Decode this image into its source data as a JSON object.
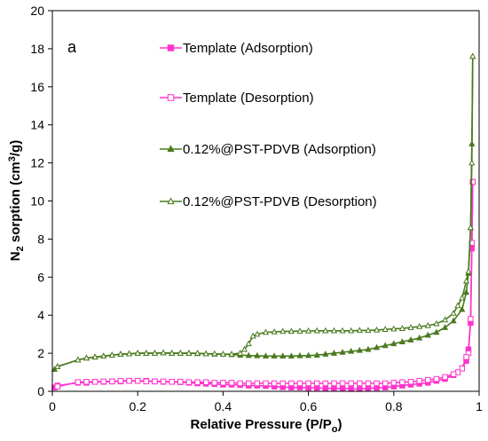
{
  "chart_data": {
    "type": "line",
    "panel_label": "a",
    "xlabel": "Relative Pressure (P/P",
    "xlabel_sub": "o",
    "xlabel_end": ")",
    "ylabel": "N",
    "ylabel_sub": "2",
    "ylabel_mid": " sorption (cm",
    "ylabel_sup": "3",
    "ylabel_end": "/g)",
    "xlim": [
      0,
      1
    ],
    "ylim": [
      0,
      20
    ],
    "xticks": [
      "0",
      "0.2",
      "0.4",
      "0.6",
      "0.8",
      "1"
    ],
    "yticks": [
      "0",
      "2",
      "4",
      "6",
      "8",
      "10",
      "12",
      "14",
      "16",
      "18",
      "20"
    ],
    "grid": false,
    "legend_position": "top-center",
    "colors": {
      "template": "#ff33cc",
      "pst": "#4a7a1e"
    },
    "series": [
      {
        "name": "Template (Adsorption)",
        "marker": "square-filled",
        "color": "#ff33cc",
        "x": [
          0.005,
          0.012,
          0.06,
          0.08,
          0.1,
          0.12,
          0.14,
          0.16,
          0.18,
          0.2,
          0.22,
          0.24,
          0.26,
          0.28,
          0.3,
          0.32,
          0.34,
          0.36,
          0.38,
          0.4,
          0.42,
          0.44,
          0.46,
          0.48,
          0.5,
          0.52,
          0.54,
          0.56,
          0.58,
          0.6,
          0.62,
          0.64,
          0.66,
          0.68,
          0.7,
          0.72,
          0.74,
          0.76,
          0.78,
          0.8,
          0.82,
          0.84,
          0.86,
          0.88,
          0.9,
          0.92,
          0.94,
          0.96,
          0.97,
          0.975,
          0.98,
          0.983,
          0.985
        ],
        "y": [
          0.2,
          0.3,
          0.45,
          0.45,
          0.5,
          0.5,
          0.52,
          0.52,
          0.55,
          0.55,
          0.55,
          0.52,
          0.5,
          0.5,
          0.48,
          0.45,
          0.42,
          0.4,
          0.38,
          0.35,
          0.35,
          0.33,
          0.3,
          0.3,
          0.28,
          0.25,
          0.22,
          0.2,
          0.2,
          0.18,
          0.18,
          0.15,
          0.15,
          0.15,
          0.12,
          0.12,
          0.15,
          0.18,
          0.2,
          0.25,
          0.3,
          0.35,
          0.4,
          0.45,
          0.55,
          0.65,
          0.85,
          1.2,
          1.6,
          2.2,
          3.6,
          7.5,
          11
        ]
      },
      {
        "name": "Template (Desorption)",
        "marker": "square-open",
        "color": "#ff33cc",
        "x": [
          0.985,
          0.983,
          0.98,
          0.975,
          0.97,
          0.96,
          0.95,
          0.94,
          0.92,
          0.9,
          0.88,
          0.86,
          0.84,
          0.82,
          0.8,
          0.78,
          0.76,
          0.74,
          0.72,
          0.7,
          0.68,
          0.66,
          0.64,
          0.62,
          0.6,
          0.58,
          0.56,
          0.54,
          0.52,
          0.5,
          0.48,
          0.46,
          0.44,
          0.42,
          0.4,
          0.38,
          0.36,
          0.34,
          0.32,
          0.3,
          0.28,
          0.26,
          0.24,
          0.22,
          0.2,
          0.18,
          0.16,
          0.14,
          0.12,
          0.1,
          0.08,
          0.06,
          0.012
        ],
        "y": [
          11,
          7.8,
          3.8,
          2.0,
          1.8,
          1.2,
          1.0,
          0.9,
          0.75,
          0.65,
          0.6,
          0.55,
          0.5,
          0.48,
          0.45,
          0.42,
          0.42,
          0.42,
          0.42,
          0.42,
          0.42,
          0.42,
          0.42,
          0.42,
          0.42,
          0.42,
          0.42,
          0.42,
          0.42,
          0.42,
          0.42,
          0.42,
          0.42,
          0.45,
          0.45,
          0.45,
          0.48,
          0.48,
          0.48,
          0.5,
          0.5,
          0.52,
          0.52,
          0.52,
          0.55,
          0.55,
          0.55,
          0.52,
          0.52,
          0.5,
          0.5,
          0.48,
          0.25
        ]
      },
      {
        "name": "0.12%@PST-PDVB (Adsorption)",
        "marker": "triangle-filled",
        "color": "#4a7a1e",
        "x": [
          0.005,
          0.012,
          0.06,
          0.08,
          0.1,
          0.12,
          0.14,
          0.16,
          0.18,
          0.2,
          0.22,
          0.24,
          0.26,
          0.28,
          0.3,
          0.32,
          0.34,
          0.36,
          0.38,
          0.4,
          0.42,
          0.44,
          0.46,
          0.48,
          0.5,
          0.52,
          0.54,
          0.56,
          0.58,
          0.6,
          0.62,
          0.64,
          0.66,
          0.68,
          0.7,
          0.72,
          0.74,
          0.76,
          0.78,
          0.8,
          0.82,
          0.84,
          0.86,
          0.88,
          0.9,
          0.92,
          0.94,
          0.96,
          0.97,
          0.975,
          0.98,
          0.983,
          0.985
        ],
        "y": [
          1.15,
          1.3,
          1.65,
          1.75,
          1.8,
          1.85,
          1.9,
          1.95,
          1.97,
          2.0,
          2.0,
          2.0,
          2.02,
          2.0,
          2.0,
          2.0,
          1.98,
          1.97,
          1.95,
          1.95,
          1.93,
          1.9,
          1.88,
          1.87,
          1.85,
          1.85,
          1.85,
          1.85,
          1.87,
          1.88,
          1.9,
          1.95,
          2.0,
          2.05,
          2.1,
          2.15,
          2.2,
          2.3,
          2.4,
          2.5,
          2.6,
          2.7,
          2.8,
          2.95,
          3.1,
          3.35,
          3.7,
          4.3,
          5.2,
          6.2,
          8.6,
          13,
          17.6
        ]
      },
      {
        "name": "0.12%@PST-PDVB (Desorption)",
        "marker": "triangle-open",
        "color": "#4a7a1e",
        "x": [
          0.985,
          0.983,
          0.98,
          0.975,
          0.97,
          0.96,
          0.95,
          0.94,
          0.92,
          0.9,
          0.88,
          0.86,
          0.84,
          0.82,
          0.8,
          0.78,
          0.76,
          0.74,
          0.72,
          0.7,
          0.68,
          0.66,
          0.64,
          0.62,
          0.6,
          0.58,
          0.56,
          0.54,
          0.52,
          0.5,
          0.48,
          0.47,
          0.46,
          0.45,
          0.44,
          0.42,
          0.4,
          0.38,
          0.36,
          0.34,
          0.32,
          0.3,
          0.28,
          0.26,
          0.24,
          0.22,
          0.2,
          0.18,
          0.16,
          0.14,
          0.12,
          0.1,
          0.08,
          0.06,
          0.012
        ],
        "y": [
          17.6,
          12,
          8.6,
          6.3,
          5.8,
          4.9,
          4.5,
          4.1,
          3.75,
          3.55,
          3.45,
          3.4,
          3.35,
          3.3,
          3.28,
          3.25,
          3.22,
          3.2,
          3.2,
          3.18,
          3.18,
          3.18,
          3.18,
          3.18,
          3.17,
          3.16,
          3.15,
          3.15,
          3.12,
          3.1,
          3.0,
          2.9,
          2.5,
          2.2,
          2.0,
          1.95,
          1.95,
          1.97,
          1.97,
          2.0,
          2.0,
          2.0,
          2.0,
          2.02,
          2.0,
          2.0,
          2.0,
          1.97,
          1.95,
          1.9,
          1.85,
          1.8,
          1.75,
          1.65,
          1.3
        ]
      }
    ]
  }
}
